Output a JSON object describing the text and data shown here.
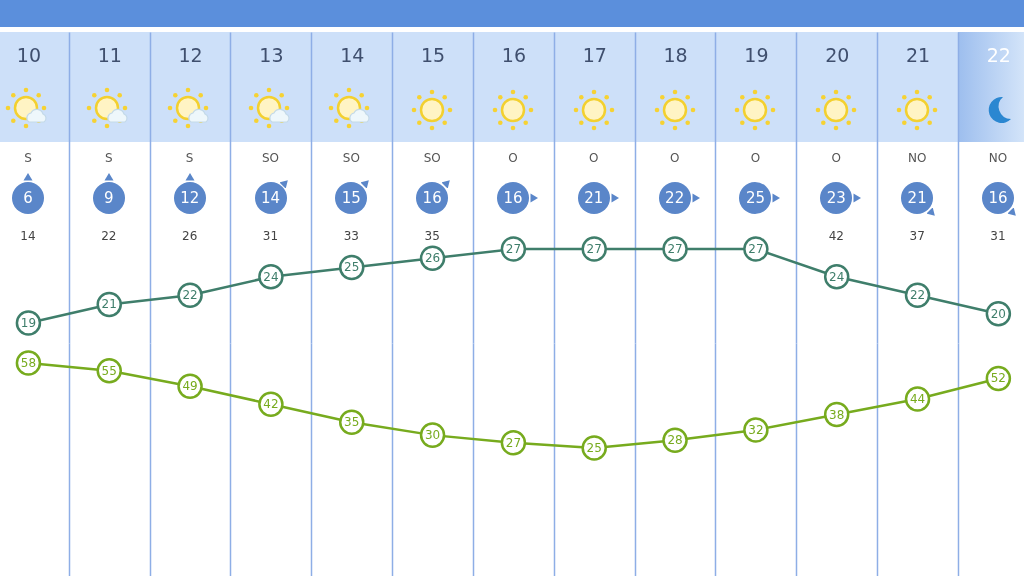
{
  "chart_data": [
    {
      "type": "line",
      "categories": [
        "10",
        "11",
        "12",
        "13",
        "14",
        "15",
        "16",
        "17",
        "18",
        "19",
        "20",
        "21",
        "22"
      ],
      "series": [
        {
          "color": "#3f7e6b",
          "values": [
            19,
            21,
            22,
            24,
            25,
            26,
            27,
            27,
            27,
            27,
            24,
            22,
            20
          ]
        }
      ],
      "marker": "circle",
      "data_labels": true,
      "grid": "x",
      "tick_labels": "x",
      "annotations": [
        "S",
        "S",
        "S",
        "SO",
        "SO",
        "SO",
        "O",
        "O",
        "O",
        "O",
        "O",
        "NO",
        "NO",
        "6",
        "9",
        "12",
        "14",
        "15",
        "16",
        "16",
        "21",
        "22",
        "25",
        "23",
        "21",
        "16",
        "14",
        "22",
        "26",
        "31",
        "33",
        "35",
        "42",
        "37",
        "31"
      ]
    },
    {
      "type": "line",
      "categories": [
        "10",
        "11",
        "12",
        "13",
        "14",
        "15",
        "16",
        "17",
        "18",
        "19",
        "20",
        "21",
        "22"
      ],
      "series": [
        {
          "color": "#77ab1e",
          "values": [
            58,
            55,
            49,
            42,
            35,
            30,
            27,
            25,
            28,
            32,
            38,
            44,
            52
          ]
        }
      ],
      "marker": "circle",
      "data_labels": true,
      "grid": "x",
      "tick_labels": false
    }
  ]
}
